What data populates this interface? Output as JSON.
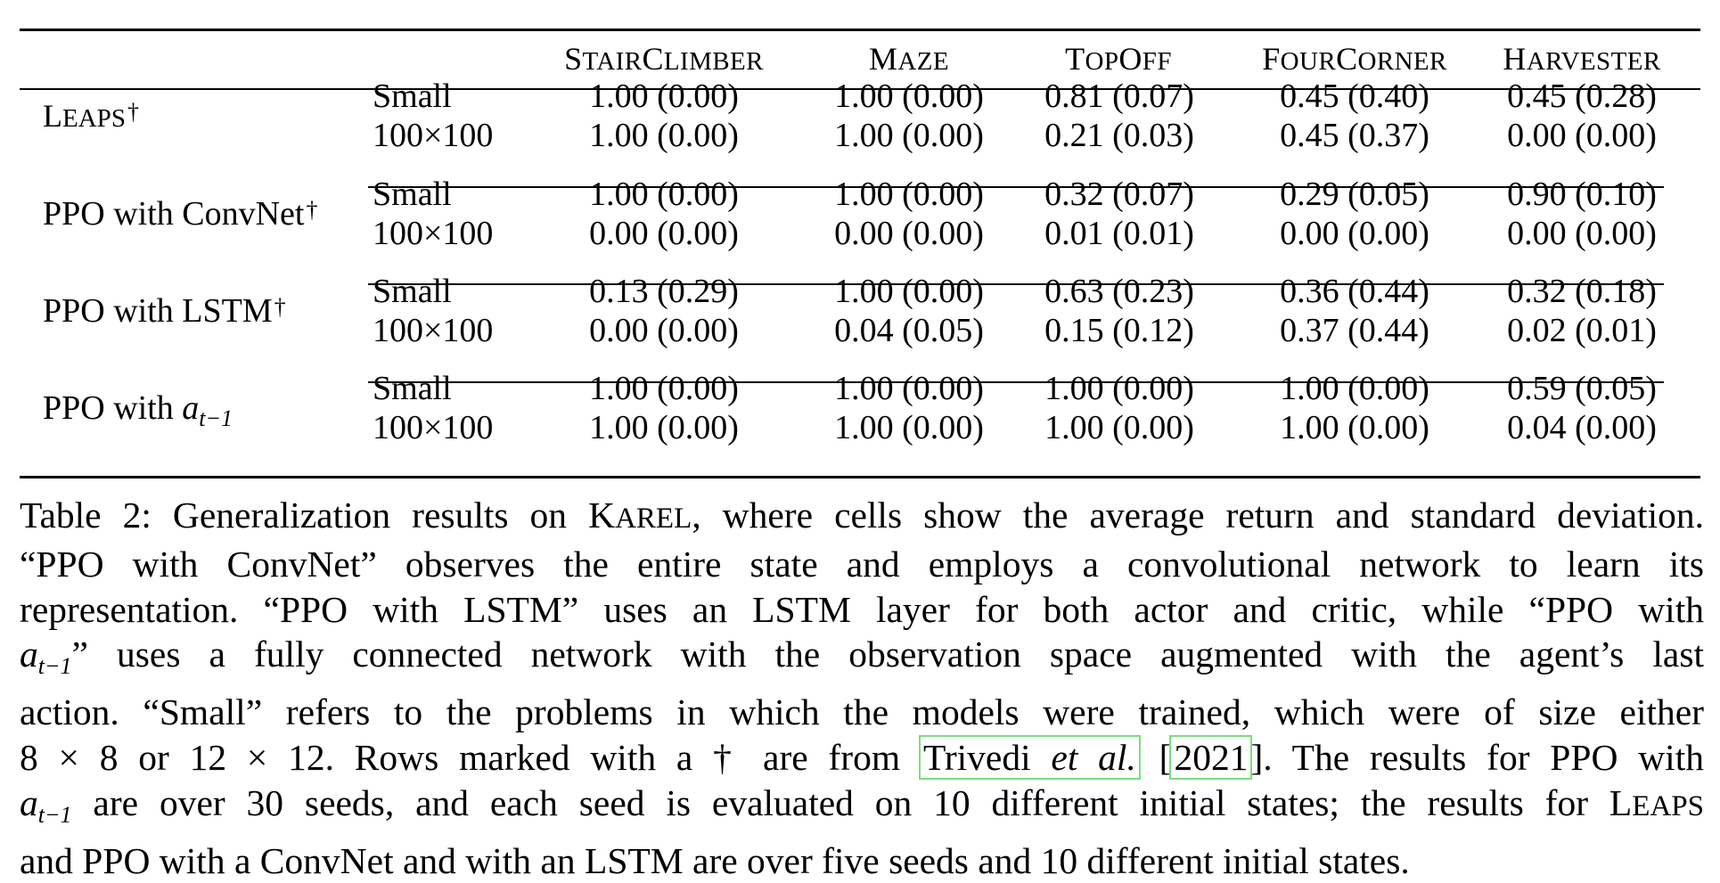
{
  "table": {
    "columns": [
      {
        "key": "stairclimber",
        "label": "StairClimber"
      },
      {
        "key": "maze",
        "label": "Maze"
      },
      {
        "key": "topoff",
        "label": "TopOff"
      },
      {
        "key": "fourcorner",
        "label": "FourCorner"
      },
      {
        "key": "harvester",
        "label": "Harvester"
      }
    ],
    "groups": [
      {
        "method": "Leaps",
        "dagger": "†",
        "rows": [
          {
            "setting": "Small",
            "values": [
              "1.00 (0.00)",
              "1.00 (0.00)",
              "0.81 (0.07)",
              "0.45 (0.40)",
              "0.45 (0.28)"
            ]
          },
          {
            "setting": "100×100",
            "values": [
              "1.00 (0.00)",
              "1.00 (0.00)",
              "0.21 (0.03)",
              "0.45 (0.37)",
              "0.00 (0.00)"
            ]
          }
        ]
      },
      {
        "method": "PPO with ConvNet",
        "dagger": "†",
        "rows": [
          {
            "setting": "Small",
            "values": [
              "1.00 (0.00)",
              "1.00 (0.00)",
              "0.32 (0.07)",
              "0.29 (0.05)",
              "0.90 (0.10)"
            ]
          },
          {
            "setting": "100×100",
            "values": [
              "0.00 (0.00)",
              "0.00 (0.00)",
              "0.01 (0.01)",
              "0.00 (0.00)",
              "0.00 (0.00)"
            ]
          }
        ]
      },
      {
        "method": "PPO with LSTM",
        "dagger": "†",
        "rows": [
          {
            "setting": "Small",
            "values": [
              "0.13 (0.29)",
              "1.00 (0.00)",
              "0.63 (0.23)",
              "0.36 (0.44)",
              "0.32 (0.18)"
            ]
          },
          {
            "setting": "100×100",
            "values": [
              "0.00 (0.00)",
              "0.04 (0.05)",
              "0.15 (0.12)",
              "0.37 (0.44)",
              "0.02 (0.01)"
            ]
          }
        ]
      },
      {
        "method": "PPO with a",
        "method_sub": "t−1",
        "rows": [
          {
            "setting": "Small",
            "values": [
              "1.00 (0.00)",
              "1.00 (0.00)",
              "1.00 (0.00)",
              "1.00 (0.00)",
              "0.59 (0.05)"
            ]
          },
          {
            "setting": "100×100",
            "values": [
              "1.00 (0.00)",
              "1.00 (0.00)",
              "1.00 (0.00)",
              "1.00 (0.00)",
              "0.04 (0.00)"
            ]
          }
        ]
      }
    ]
  },
  "caption": {
    "l1a": "Table 2: Generalization results on ",
    "l1_karel": "Karel",
    "l1b": ", where cells show the average return and standard deviation.",
    "l2": "“PPO with ConvNet” observes the entire state and employs a convolutional network to learn its",
    "l3": "representation. “PPO with LSTM” uses an LSTM layer for both actor and critic, while “PPO with",
    "l4_var": "a",
    "l4_sub": "t−1",
    "l4": "” uses a fully connected network with the observation space augmented with the agent’s last",
    "l5": "action. “Small” refers to the problems in which the models were trained, which were of size either",
    "l6a": "8 × 8 or 12 × 12. Rows marked with a † are from ",
    "l6_cite_author": "Trivedi ",
    "l6_cite_etal": "et al.",
    "l6_open": " [",
    "l6_year": "2021",
    "l6_close": "]",
    "l6b": ". The results for PPO with",
    "l7_var": "a",
    "l7_sub": "t−1",
    "l7a": " are over 30 seeds, and each seed is evaluated on 10 different initial states; the results for ",
    "l7_leaps": "Leaps",
    "l8": "and PPO with a ConvNet and with an LSTM are over five seeds and 10 different initial states."
  }
}
